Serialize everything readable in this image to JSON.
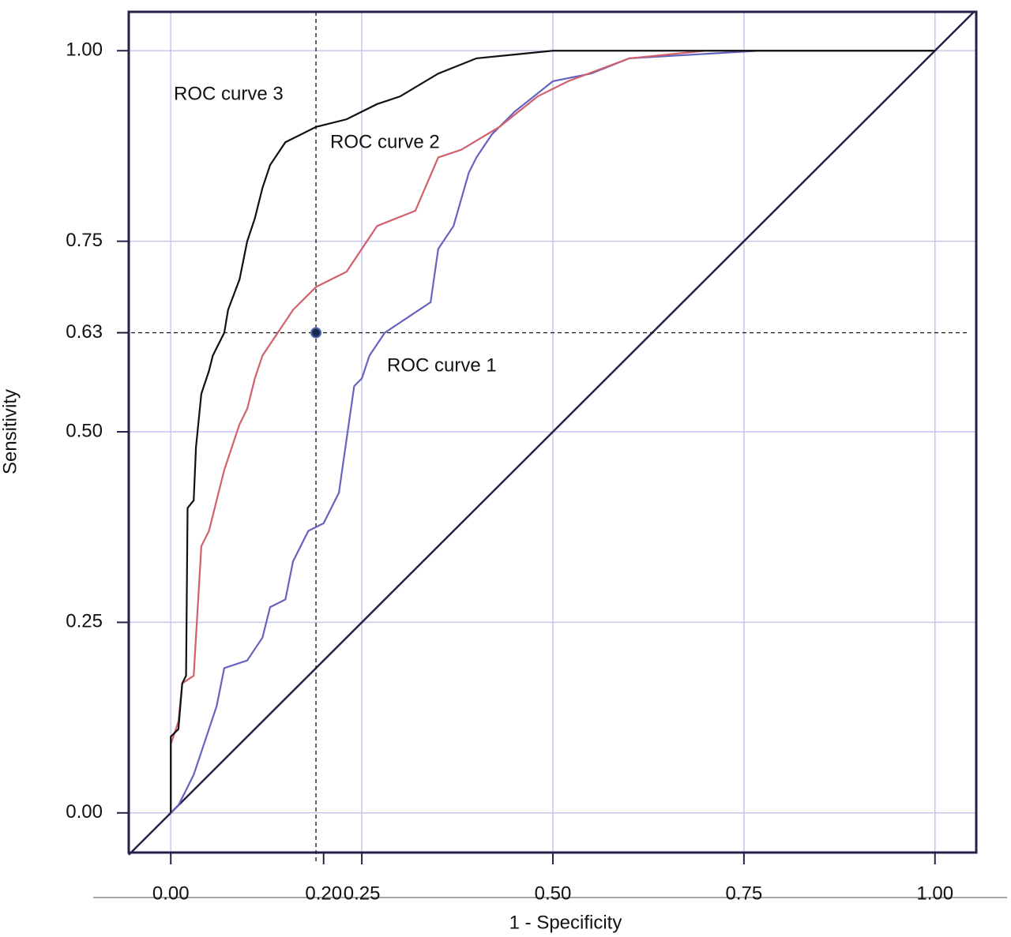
{
  "chart_data": {
    "type": "line",
    "xlabel": "1 - Specificity",
    "ylabel": "Sensitivity",
    "xlim": [
      -0.055,
      1.054
    ],
    "ylim": [
      -0.052,
      1.051
    ],
    "xticks": [
      {
        "value": 0,
        "label": "0.00"
      },
      {
        "value": 0.2,
        "label": "0.20"
      },
      {
        "value": 0.25,
        "label": "0.25"
      },
      {
        "value": 0.5,
        "label": "0.50"
      },
      {
        "value": 0.75,
        "label": "0.75"
      },
      {
        "value": 1,
        "label": "1.00"
      }
    ],
    "yticks": [
      {
        "value": 0,
        "label": "0.00"
      },
      {
        "value": 0.25,
        "label": "0.25"
      },
      {
        "value": 0.5,
        "label": "0.50"
      },
      {
        "value": 0.63,
        "label": "0.63"
      },
      {
        "value": 0.75,
        "label": "0.75"
      },
      {
        "value": 1,
        "label": "1.00"
      }
    ],
    "xgrid": [
      0,
      0.25,
      0.5,
      0.75,
      1
    ],
    "ygrid": [
      0,
      0.25,
      0.5,
      0.75,
      1
    ],
    "grid_color": "#c9c6ee",
    "cutoff": {
      "x": 0.19,
      "y": 0.63
    },
    "series": [
      {
        "name": "ROC curve 1",
        "color": "#6464bf",
        "x": [
          0,
          0.01,
          0.02,
          0.03,
          0.04,
          0.05,
          0.06,
          0.07,
          0.1,
          0.12,
          0.13,
          0.15,
          0.16,
          0.17,
          0.18,
          0.2,
          0.22,
          0.23,
          0.24,
          0.25,
          0.26,
          0.28,
          0.31,
          0.34,
          0.35,
          0.37,
          0.39,
          0.4,
          0.42,
          0.45,
          0.5,
          0.55,
          0.6,
          0.77,
          1
        ],
        "y": [
          0,
          0.01,
          0.03,
          0.05,
          0.08,
          0.11,
          0.14,
          0.19,
          0.2,
          0.23,
          0.27,
          0.28,
          0.33,
          0.35,
          0.37,
          0.38,
          0.42,
          0.49,
          0.56,
          0.57,
          0.6,
          0.63,
          0.65,
          0.67,
          0.74,
          0.77,
          0.84,
          0.86,
          0.89,
          0.92,
          0.96,
          0.97,
          0.99,
          1,
          1
        ]
      },
      {
        "name": "ROC curve 2",
        "color": "#d0606c",
        "x": [
          0,
          0,
          0.01,
          0.015,
          0.03,
          0.04,
          0.05,
          0.06,
          0.07,
          0.08,
          0.09,
          0.1,
          0.11,
          0.12,
          0.14,
          0.16,
          0.19,
          0.23,
          0.25,
          0.27,
          0.32,
          0.35,
          0.38,
          0.43,
          0.48,
          0.52,
          0.6,
          0.7,
          1
        ],
        "y": [
          0,
          0.09,
          0.12,
          0.17,
          0.18,
          0.35,
          0.37,
          0.41,
          0.45,
          0.48,
          0.51,
          0.53,
          0.57,
          0.6,
          0.63,
          0.66,
          0.69,
          0.71,
          0.74,
          0.77,
          0.79,
          0.86,
          0.87,
          0.9,
          0.94,
          0.96,
          0.99,
          1,
          1
        ]
      },
      {
        "name": "ROC curve 3",
        "color": "#111111",
        "x": [
          0,
          0,
          0.01,
          0.015,
          0.02,
          0.022,
          0.03,
          0.033,
          0.04,
          0.05,
          0.055,
          0.07,
          0.075,
          0.09,
          0.1,
          0.11,
          0.12,
          0.13,
          0.15,
          0.17,
          0.19,
          0.23,
          0.27,
          0.3,
          0.35,
          0.4,
          0.5,
          1
        ],
        "y": [
          0,
          0.1,
          0.11,
          0.17,
          0.18,
          0.4,
          0.41,
          0.48,
          0.55,
          0.58,
          0.6,
          0.63,
          0.66,
          0.7,
          0.75,
          0.78,
          0.82,
          0.85,
          0.88,
          0.89,
          0.9,
          0.91,
          0.93,
          0.94,
          0.97,
          0.99,
          1,
          1
        ]
      }
    ]
  }
}
